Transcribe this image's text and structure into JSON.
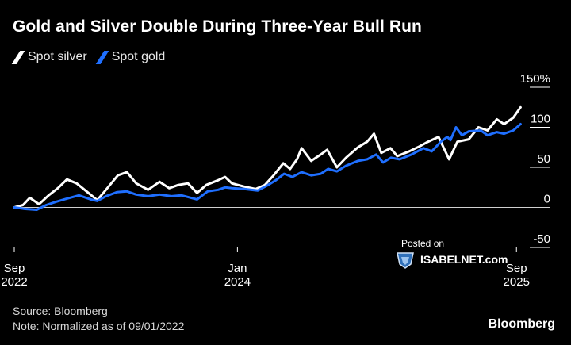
{
  "title": "Gold and Silver Double During Three-Year Bull Run",
  "legend": [
    {
      "label": "Spot silver",
      "color": "#ffffff"
    },
    {
      "label": "Spot gold",
      "color": "#1f6fff"
    }
  ],
  "source": "Source: Bloomberg",
  "note": "Note: Normalized as of 09/01/2022",
  "brand": "Bloomberg",
  "watermark": {
    "posted": "Posted on",
    "site": "ISABELNET.com"
  },
  "chart_data": {
    "type": "line",
    "title": "Gold and Silver Double During Three-Year Bull Run",
    "ylabel": "",
    "y_unit": "%",
    "ylim": [
      -50,
      150
    ],
    "yticks": [
      -50,
      0,
      50,
      100,
      150
    ],
    "ytick_labels": [
      "-50",
      "0",
      "50",
      "100",
      "150%"
    ],
    "xlim": [
      "2022-09-01",
      "2025-09-30"
    ],
    "xticks": [
      {
        "date": "2022-09-01",
        "label_line1": "Sep",
        "label_line2": "2022"
      },
      {
        "date": "2024-01-01",
        "label_line1": "Jan",
        "label_line2": "2024"
      },
      {
        "date": "2025-09-01",
        "label_line1": "Sep",
        "label_line2": "2025"
      }
    ],
    "zero_line": true,
    "grid": false,
    "legend_position": "top-left",
    "series": [
      {
        "name": "Spot silver",
        "color": "#ffffff",
        "points": [
          [
            "2022-09-01",
            0
          ],
          [
            "2022-09-20",
            3
          ],
          [
            "2022-10-05",
            12
          ],
          [
            "2022-10-25",
            4
          ],
          [
            "2022-11-15",
            15
          ],
          [
            "2022-12-05",
            24
          ],
          [
            "2022-12-25",
            35
          ],
          [
            "2023-01-15",
            30
          ],
          [
            "2023-02-10",
            18
          ],
          [
            "2023-03-01",
            9
          ],
          [
            "2023-03-20",
            22
          ],
          [
            "2023-04-15",
            40
          ],
          [
            "2023-05-05",
            44
          ],
          [
            "2023-05-25",
            30
          ],
          [
            "2023-06-20",
            22
          ],
          [
            "2023-07-15",
            32
          ],
          [
            "2023-08-05",
            24
          ],
          [
            "2023-08-25",
            28
          ],
          [
            "2023-09-15",
            30
          ],
          [
            "2023-10-05",
            18
          ],
          [
            "2023-10-25",
            28
          ],
          [
            "2023-11-20",
            34
          ],
          [
            "2023-12-05",
            38
          ],
          [
            "2023-12-20",
            30
          ],
          [
            "2024-01-15",
            26
          ],
          [
            "2024-02-10",
            23
          ],
          [
            "2024-03-01",
            28
          ],
          [
            "2024-03-20",
            40
          ],
          [
            "2024-04-10",
            55
          ],
          [
            "2024-04-25",
            48
          ],
          [
            "2024-05-10",
            60
          ],
          [
            "2024-05-20",
            74
          ],
          [
            "2024-06-10",
            58
          ],
          [
            "2024-07-01",
            66
          ],
          [
            "2024-07-15",
            72
          ],
          [
            "2024-08-05",
            50
          ],
          [
            "2024-08-25",
            62
          ],
          [
            "2024-09-20",
            75
          ],
          [
            "2024-10-10",
            82
          ],
          [
            "2024-10-25",
            92
          ],
          [
            "2024-11-10",
            68
          ],
          [
            "2024-11-30",
            74
          ],
          [
            "2024-12-15",
            64
          ],
          [
            "2025-01-10",
            70
          ],
          [
            "2025-02-01",
            76
          ],
          [
            "2025-02-20",
            82
          ],
          [
            "2025-03-15",
            88
          ],
          [
            "2025-04-07",
            60
          ],
          [
            "2025-04-25",
            82
          ],
          [
            "2025-05-20",
            85
          ],
          [
            "2025-06-10",
            100
          ],
          [
            "2025-06-30",
            96
          ],
          [
            "2025-07-20",
            110
          ],
          [
            "2025-08-05",
            104
          ],
          [
            "2025-08-25",
            112
          ],
          [
            "2025-09-10",
            125
          ]
        ]
      },
      {
        "name": "Spot gold",
        "color": "#1f6fff",
        "points": [
          [
            "2022-09-01",
            0
          ],
          [
            "2022-09-25",
            -2
          ],
          [
            "2022-10-20",
            -3
          ],
          [
            "2022-11-10",
            3
          ],
          [
            "2022-12-01",
            7
          ],
          [
            "2022-12-25",
            11
          ],
          [
            "2023-01-20",
            15
          ],
          [
            "2023-02-15",
            10
          ],
          [
            "2023-03-01",
            8
          ],
          [
            "2023-03-20",
            14
          ],
          [
            "2023-04-13",
            19
          ],
          [
            "2023-05-05",
            20
          ],
          [
            "2023-05-25",
            16
          ],
          [
            "2023-06-20",
            14
          ],
          [
            "2023-07-15",
            16
          ],
          [
            "2023-08-10",
            14
          ],
          [
            "2023-09-01",
            15
          ],
          [
            "2023-10-05",
            10
          ],
          [
            "2023-10-28",
            20
          ],
          [
            "2023-11-20",
            22
          ],
          [
            "2023-12-05",
            25
          ],
          [
            "2023-12-20",
            24
          ],
          [
            "2024-01-15",
            23
          ],
          [
            "2024-02-14",
            21
          ],
          [
            "2024-03-05",
            27
          ],
          [
            "2024-03-25",
            34
          ],
          [
            "2024-04-12",
            42
          ],
          [
            "2024-04-30",
            38
          ],
          [
            "2024-05-20",
            44
          ],
          [
            "2024-06-10",
            40
          ],
          [
            "2024-07-01",
            42
          ],
          [
            "2024-07-17",
            48
          ],
          [
            "2024-08-05",
            45
          ],
          [
            "2024-08-25",
            52
          ],
          [
            "2024-09-20",
            58
          ],
          [
            "2024-10-10",
            60
          ],
          [
            "2024-10-30",
            66
          ],
          [
            "2024-11-14",
            56
          ],
          [
            "2024-12-01",
            62
          ],
          [
            "2024-12-20",
            60
          ],
          [
            "2025-01-15",
            66
          ],
          [
            "2025-02-10",
            74
          ],
          [
            "2025-02-28",
            70
          ],
          [
            "2025-03-20",
            82
          ],
          [
            "2025-04-03",
            88
          ],
          [
            "2025-04-10",
            84
          ],
          [
            "2025-04-22",
            100
          ],
          [
            "2025-05-05",
            90
          ],
          [
            "2025-05-20",
            95
          ],
          [
            "2025-06-15",
            96
          ],
          [
            "2025-06-30",
            90
          ],
          [
            "2025-07-20",
            94
          ],
          [
            "2025-08-05",
            92
          ],
          [
            "2025-08-25",
            96
          ],
          [
            "2025-09-10",
            104
          ]
        ]
      }
    ]
  }
}
